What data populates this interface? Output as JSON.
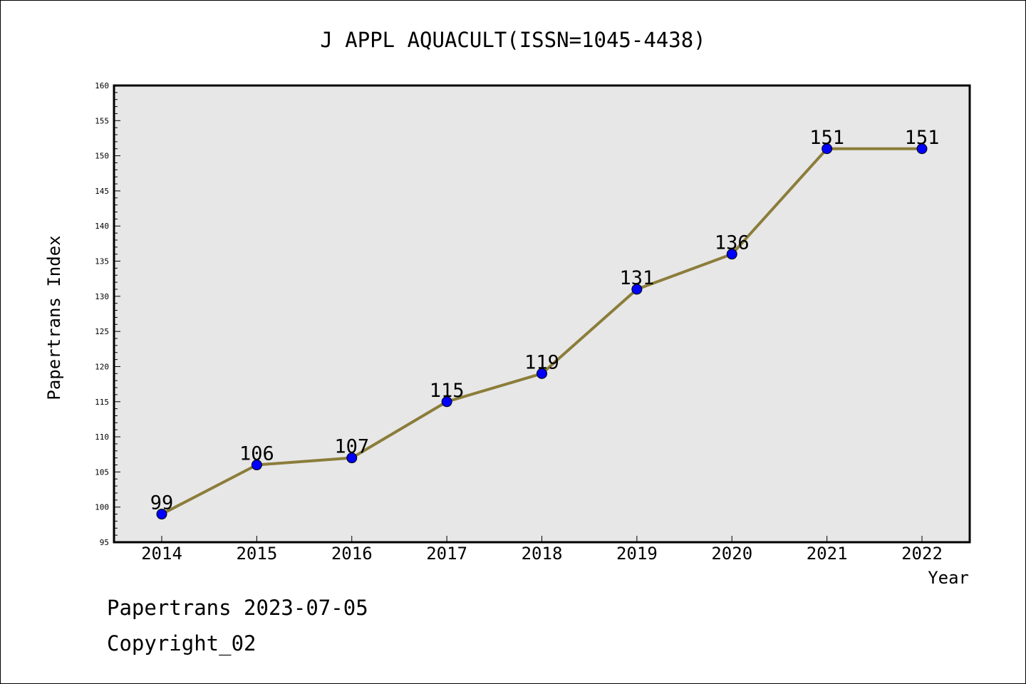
{
  "chart_data": {
    "type": "line",
    "title": "J APPL AQUACULT(ISSN=1045-4438)",
    "xlabel": "Year",
    "ylabel": "Papertrans Index",
    "categories": [
      "2014",
      "2015",
      "2016",
      "2017",
      "2018",
      "2019",
      "2020",
      "2021",
      "2022"
    ],
    "values": [
      99,
      106,
      107,
      115,
      119,
      131,
      136,
      151,
      151
    ],
    "data_labels": [
      "99",
      "106",
      "107",
      "115",
      "119",
      "131",
      "136",
      "151",
      "151"
    ],
    "ylim": [
      95,
      160
    ],
    "yticks": [
      "95",
      "100",
      "105",
      "110",
      "115",
      "120",
      "125",
      "130",
      "135",
      "140",
      "145",
      "150",
      "155",
      "160"
    ],
    "grid": false,
    "line_color": "#8b7d3a",
    "marker_color": "#0000ff",
    "plot_background": "#e7e7e7"
  },
  "footer": {
    "line1": "Papertrans 2023-07-05",
    "line2": "Copyright_02"
  }
}
